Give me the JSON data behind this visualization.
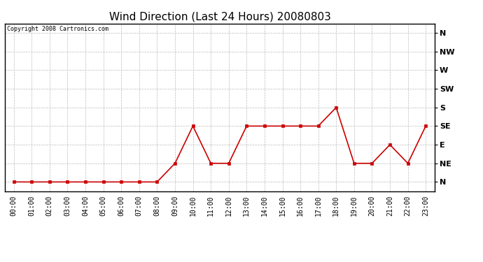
{
  "title": "Wind Direction (Last 24 Hours) 20080803",
  "copyright_text": "Copyright 2008 Cartronics.com",
  "x_labels": [
    "00:00",
    "01:00",
    "02:00",
    "03:00",
    "04:00",
    "05:00",
    "06:00",
    "07:00",
    "08:00",
    "09:00",
    "10:00",
    "11:00",
    "12:00",
    "13:00",
    "14:00",
    "15:00",
    "16:00",
    "17:00",
    "18:00",
    "19:00",
    "20:00",
    "21:00",
    "22:00",
    "23:00"
  ],
  "y_labels": [
    "N",
    "NE",
    "E",
    "SE",
    "S",
    "SW",
    "W",
    "NW",
    "N"
  ],
  "y_values": [
    0,
    1,
    2,
    3,
    4,
    5,
    6,
    7,
    8
  ],
  "wind_data": [
    0,
    0,
    0,
    0,
    0,
    0,
    0,
    0,
    0,
    1,
    3,
    1,
    1,
    3,
    3,
    3,
    3,
    3,
    4,
    1,
    1,
    2,
    1,
    3
  ],
  "line_color": "#cc0000",
  "marker_color": "#cc0000",
  "bg_color": "#ffffff",
  "grid_color": "#bbbbbb",
  "title_fontsize": 11,
  "copyright_fontsize": 6,
  "tick_fontsize": 7,
  "ytick_fontsize": 8
}
